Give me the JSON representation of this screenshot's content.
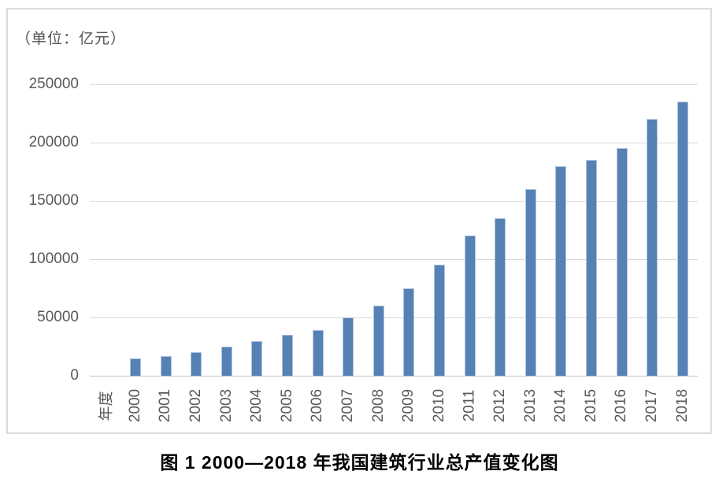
{
  "figure": {
    "unit_label": "（单位：亿元）",
    "caption": "图 1  2000—2018 年我国建筑行业总产值变化图"
  },
  "chart_data": {
    "type": "bar",
    "title": "图 1 2000—2018 年我国建筑行业总产值变化图",
    "unit_label": "（单位：亿元）",
    "ylabel": "亿元",
    "x_axis_label": "年度",
    "categories": [
      "2000",
      "2001",
      "2002",
      "2003",
      "2004",
      "2005",
      "2006",
      "2007",
      "2008",
      "2009",
      "2010",
      "2011",
      "2012",
      "2013",
      "2014",
      "2015",
      "2016",
      "2017",
      "2018"
    ],
    "values": [
      15000,
      17000,
      20000,
      25000,
      30000,
      35000,
      39000,
      50000,
      60000,
      75000,
      95000,
      120000,
      135000,
      160000,
      180000,
      185000,
      195000,
      220000,
      235000
    ],
    "ylim": [
      0,
      250000
    ],
    "y_ticks": [
      0,
      50000,
      100000,
      150000,
      200000,
      250000
    ],
    "grid": true,
    "legend": "none",
    "bar_color": "#5581b5",
    "gridline_color": "#d9d9d9",
    "text_color": "#595959"
  }
}
